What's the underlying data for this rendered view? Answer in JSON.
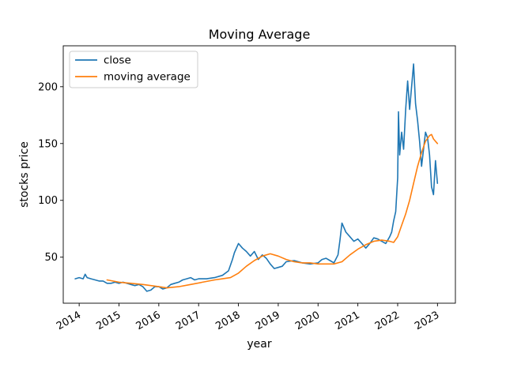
{
  "chart_data": {
    "type": "line",
    "title": "Moving Average",
    "xlabel": "year",
    "ylabel": "stocks price",
    "xlim": [
      2013.6,
      2023.45
    ],
    "ylim": [
      9.5,
      236
    ],
    "x_ticks": [
      2014,
      2015,
      2016,
      2017,
      2018,
      2019,
      2020,
      2021,
      2022,
      2023
    ],
    "x_tick_labels": [
      "2014",
      "2015",
      "2016",
      "2017",
      "2018",
      "2019",
      "2020",
      "2021",
      "2022",
      "2023"
    ],
    "y_ticks": [
      50,
      100,
      150,
      200
    ],
    "y_tick_labels": [
      "50",
      "100",
      "150",
      "200"
    ],
    "grid": false,
    "legend_position": "upper left",
    "series": [
      {
        "name": "close",
        "color": "#1f77b4",
        "x": [
          2013.9,
          2014.0,
          2014.1,
          2014.15,
          2014.2,
          2014.3,
          2014.4,
          2014.5,
          2014.6,
          2014.7,
          2014.8,
          2014.9,
          2015.0,
          2015.1,
          2015.2,
          2015.3,
          2015.4,
          2015.5,
          2015.6,
          2015.7,
          2015.8,
          2015.9,
          2016.0,
          2016.1,
          2016.2,
          2016.3,
          2016.4,
          2016.5,
          2016.6,
          2016.7,
          2016.8,
          2016.9,
          2017.0,
          2017.2,
          2017.4,
          2017.6,
          2017.75,
          2017.85,
          2017.9,
          2018.0,
          2018.1,
          2018.2,
          2018.3,
          2018.4,
          2018.5,
          2018.6,
          2018.7,
          2018.8,
          2018.9,
          2019.0,
          2019.1,
          2019.2,
          2019.4,
          2019.6,
          2019.8,
          2020.0,
          2020.1,
          2020.2,
          2020.3,
          2020.4,
          2020.5,
          2020.55,
          2020.6,
          2020.7,
          2020.8,
          2020.9,
          2021.0,
          2021.1,
          2021.2,
          2021.3,
          2021.4,
          2021.5,
          2021.6,
          2021.7,
          2021.8,
          2021.85,
          2021.9,
          2021.95,
          2022.0,
          2022.02,
          2022.05,
          2022.1,
          2022.15,
          2022.2,
          2022.25,
          2022.3,
          2022.35,
          2022.4,
          2022.45,
          2022.5,
          2022.55,
          2022.6,
          2022.65,
          2022.7,
          2022.75,
          2022.8,
          2022.85,
          2022.9,
          2022.95,
          2023.0
        ],
        "y": [
          31,
          32,
          31,
          35,
          32,
          31,
          30,
          29,
          29,
          27,
          27,
          28,
          27,
          28,
          27,
          26,
          25,
          26,
          24,
          20,
          21,
          24,
          24,
          22,
          23,
          26,
          27,
          28,
          30,
          31,
          32,
          30,
          31,
          31,
          32,
          34,
          38,
          48,
          54,
          62,
          58,
          55,
          51,
          55,
          48,
          52,
          49,
          44,
          40,
          41,
          42,
          46,
          47,
          45,
          44,
          45,
          48,
          49,
          47,
          45,
          52,
          65,
          80,
          72,
          68,
          64,
          66,
          62,
          58,
          62,
          67,
          66,
          64,
          62,
          68,
          72,
          82,
          90,
          120,
          178,
          140,
          160,
          145,
          180,
          205,
          180,
          200,
          220,
          185,
          170,
          152,
          130,
          145,
          160,
          155,
          140,
          112,
          105,
          135,
          115
        ]
      },
      {
        "name": "moving average",
        "color": "#ff7f0e",
        "x": [
          2014.7,
          2015.0,
          2015.3,
          2015.6,
          2016.0,
          2016.2,
          2016.5,
          2016.8,
          2017.1,
          2017.4,
          2017.6,
          2017.8,
          2018.0,
          2018.2,
          2018.4,
          2018.6,
          2018.8,
          2019.0,
          2019.2,
          2019.4,
          2019.6,
          2019.8,
          2020.0,
          2020.2,
          2020.4,
          2020.6,
          2020.8,
          2021.0,
          2021.2,
          2021.4,
          2021.6,
          2021.8,
          2021.9,
          2022.0,
          2022.1,
          2022.2,
          2022.3,
          2022.4,
          2022.5,
          2022.6,
          2022.7,
          2022.8,
          2022.85,
          2022.9,
          2023.0
        ],
        "y": [
          30,
          28,
          27,
          26,
          24,
          23,
          24,
          26,
          28,
          30,
          31,
          32,
          36,
          42,
          47,
          51,
          53,
          51,
          48,
          46,
          45,
          45,
          44,
          44,
          44,
          46,
          52,
          57,
          61,
          64,
          65,
          64,
          63,
          68,
          78,
          88,
          100,
          115,
          130,
          142,
          152,
          157,
          158,
          154,
          150
        ]
      }
    ]
  }
}
